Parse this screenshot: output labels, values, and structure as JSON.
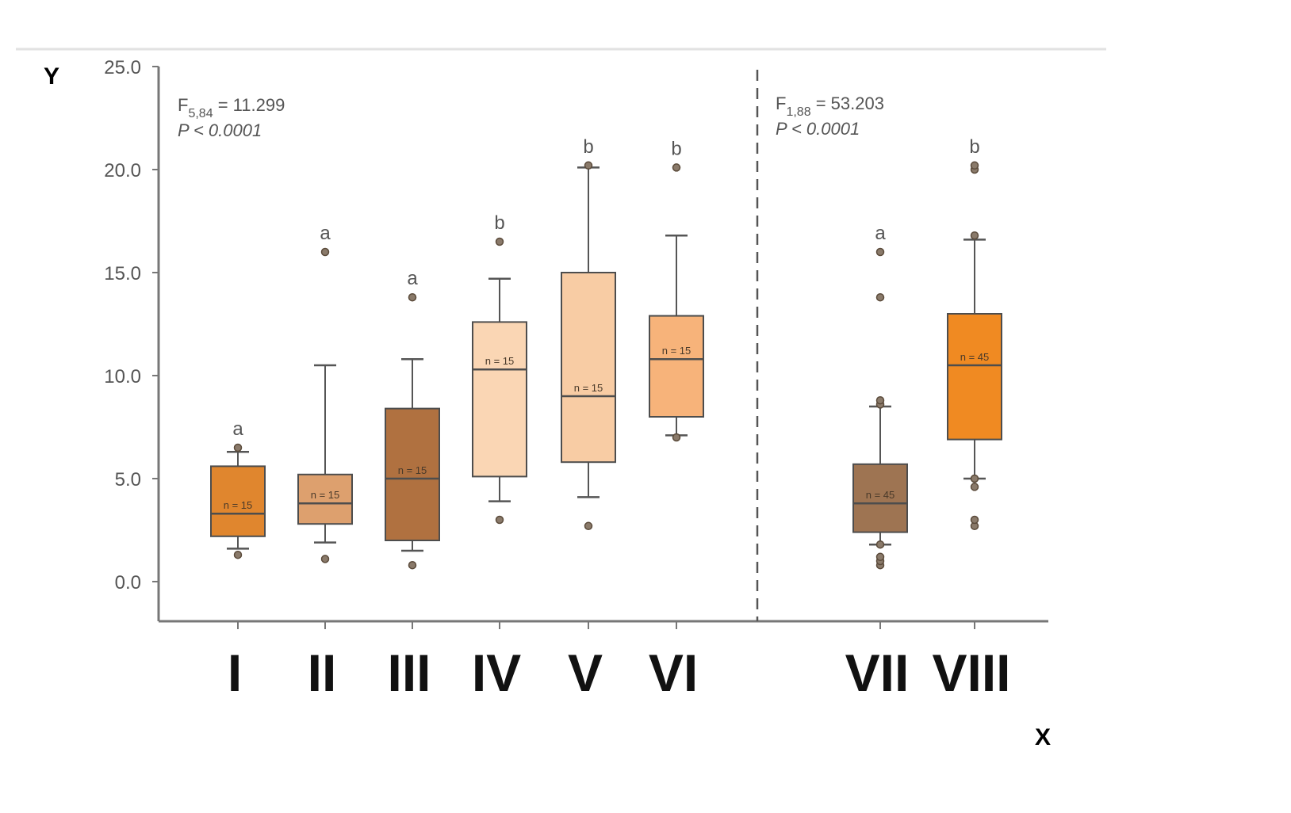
{
  "chart_data": {
    "type": "box",
    "ylabel": "Y",
    "xlabel": "X",
    "yticks": [
      "0.0",
      "5.0",
      "10.0",
      "15.0",
      "20.0",
      "25.0"
    ],
    "ylim": [
      -2,
      25
    ],
    "grid": false,
    "annotations": [
      {
        "stat": "F",
        "sub": "5,84",
        "value": " = 11.299",
        "p": "P < 0.0001"
      },
      {
        "stat": "F",
        "sub": "1,88",
        "value": " = 53.203",
        "p": "P < 0.0001"
      }
    ],
    "groups": [
      {
        "label": "I",
        "letter": "a",
        "n": "n = 15",
        "color": "#E0862E",
        "whisker_low": 1.6,
        "q1": 2.2,
        "median": 3.3,
        "q3": 5.6,
        "whisker_high": 6.3,
        "outliers": [
          1.3,
          6.5
        ]
      },
      {
        "label": "II",
        "letter": "a",
        "n": "n = 15",
        "color": "#DDA06E",
        "whisker_low": 1.9,
        "q1": 2.8,
        "median": 3.8,
        "q3": 5.2,
        "whisker_high": 10.5,
        "outliers": [
          1.1,
          16.0
        ]
      },
      {
        "label": "III",
        "letter": "a",
        "n": "n = 15",
        "color": "#B07140",
        "whisker_low": 1.5,
        "q1": 2.0,
        "median": 5.0,
        "q3": 8.4,
        "whisker_high": 10.8,
        "outliers": [
          0.8,
          13.8
        ]
      },
      {
        "label": "IV",
        "letter": "b",
        "n": "n = 15",
        "color": "#FAD6B4",
        "whisker_low": 3.9,
        "q1": 5.1,
        "median": 10.3,
        "q3": 12.6,
        "whisker_high": 14.7,
        "outliers": [
          3.0,
          16.5
        ]
      },
      {
        "label": "V",
        "letter": "b",
        "n": "n = 15",
        "color": "#F8CCA4",
        "whisker_low": 4.1,
        "q1": 5.8,
        "median": 9.0,
        "q3": 15.0,
        "whisker_high": 20.1,
        "outliers": [
          2.7,
          20.2
        ]
      },
      {
        "label": "VI",
        "letter": "b",
        "n": "n = 15",
        "color": "#F7B37A",
        "whisker_low": 7.1,
        "q1": 8.0,
        "median": 10.8,
        "q3": 12.9,
        "whisker_high": 16.8,
        "outliers": [
          7.0,
          20.1
        ]
      },
      {
        "label": "VII",
        "letter": "a",
        "n": "n = 45",
        "color": "#9E7452",
        "whisker_low": 1.8,
        "q1": 2.4,
        "median": 3.8,
        "q3": 5.7,
        "whisker_high": 8.5,
        "outliers": [
          0.8,
          1.0,
          1.2,
          1.8,
          8.6,
          8.8,
          13.8,
          16.0
        ]
      },
      {
        "label": "VIII",
        "letter": "b",
        "n": "n = 45",
        "color": "#F08A22",
        "whisker_low": 5.0,
        "q1": 6.9,
        "median": 10.5,
        "q3": 13.0,
        "whisker_high": 16.6,
        "outliers": [
          2.7,
          3.0,
          4.6,
          5.0,
          16.8,
          20.0,
          20.2
        ]
      }
    ]
  }
}
